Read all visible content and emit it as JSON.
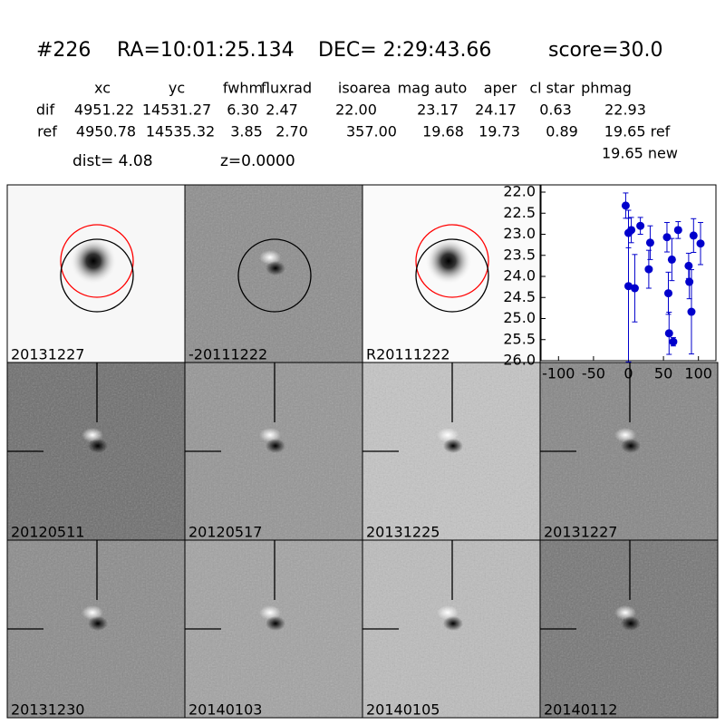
{
  "header": {
    "id": "#226",
    "ra": "RA=10:01:25.134",
    "dec": "DEC= 2:29:43.66",
    "score": "score=30.0"
  },
  "table": {
    "columns": [
      "xc",
      "yc",
      "fwhm",
      "fluxrad",
      "isoarea",
      "mag auto",
      "aper",
      "cl star",
      "phmag"
    ],
    "rows": [
      [
        "dif",
        "4951.22",
        "14531.27",
        "6.30",
        "2.47",
        "22.00",
        "23.17",
        "24.17",
        "0.63",
        "22.93"
      ],
      [
        "ref",
        "4950.78",
        "14535.32",
        "3.85",
        "2.70",
        "357.00",
        "19.68",
        "19.73",
        "0.89",
        "19.65 ref"
      ]
    ],
    "extra": "19.65 new"
  },
  "info": {
    "dist": "dist=  4.08",
    "z": "z=0.0000"
  },
  "panels": [
    {
      "label": "20131227",
      "color": "#000000"
    },
    {
      "label": "-20111222",
      "color": "#000000"
    },
    {
      "label": "R20111222",
      "color": "#000000"
    },
    {
      "label": "20120511",
      "color": "#000000"
    },
    {
      "label": "20120517",
      "color": "#000000"
    },
    {
      "label": "20131225",
      "color": "#000000"
    },
    {
      "label": "20131227",
      "color": "#ff0000"
    },
    {
      "label": "20131230",
      "color": "#000000"
    },
    {
      "label": "20140103",
      "color": "#000000"
    },
    {
      "label": "20140105",
      "color": "#000000"
    },
    {
      "label": "20140112",
      "color": "#000000"
    }
  ],
  "chart_data": {
    "type": "scatter",
    "color": "#0000cc",
    "x": [
      -4,
      0,
      4,
      0,
      9,
      17,
      31,
      29,
      55,
      57,
      58,
      62,
      64,
      71,
      86,
      87,
      90,
      93,
      103
    ],
    "values": [
      22.32,
      22.97,
      22.9,
      24.23,
      24.28,
      22.8,
      23.2,
      23.83,
      23.07,
      24.4,
      25.35,
      23.6,
      25.55,
      22.9,
      23.75,
      24.13,
      24.84,
      23.03,
      23.22
    ],
    "errors": [
      0.3,
      0.35,
      0.3,
      1.8,
      0.8,
      0.2,
      0.4,
      0.45,
      0.35,
      0.5,
      0.5,
      0.5,
      0.1,
      0.2,
      0.3,
      0.4,
      1.0,
      0.4,
      0.5
    ],
    "xlim": [
      -125,
      125
    ],
    "xticks": [
      -100,
      -50,
      0,
      50,
      100
    ],
    "ylim": [
      22,
      26
    ],
    "y_inverted": true,
    "yticks": [
      {
        "value": 22,
        "label": "22.0"
      },
      22.5,
      {
        "value": 23,
        "label": "23.0"
      },
      23.5,
      {
        "value": 24,
        "label": "24.0"
      },
      24.5,
      {
        "value": 25,
        "label": "25.0"
      },
      25.5,
      {
        "value": 26,
        "label": "26.0"
      }
    ]
  }
}
